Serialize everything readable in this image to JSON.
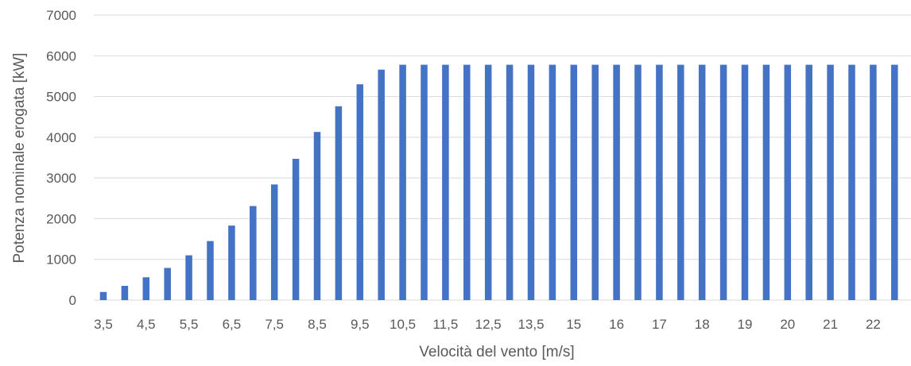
{
  "chart_data": {
    "type": "bar",
    "title": "",
    "xlabel": "Velocità del vento [m/s]",
    "ylabel": "Potenza nominale erogata [kW]",
    "ylim": [
      0,
      7000
    ],
    "yticks": [
      0,
      1000,
      2000,
      3000,
      4000,
      5000,
      6000,
      7000
    ],
    "grid": true,
    "bar_color": "#4472C4",
    "grid_color": "#D9D9D9",
    "categories": [
      "3,5",
      "4",
      "4,5",
      "5",
      "5,5",
      "6",
      "6,5",
      "7",
      "7,5",
      "8",
      "8,5",
      "9",
      "9,5",
      "10",
      "10,5",
      "11",
      "11,5",
      "12",
      "12,5",
      "13",
      "13,5",
      "14",
      "15",
      "15,5",
      "16",
      "16,5",
      "17",
      "17,5",
      "18",
      "18,5",
      "19",
      "19,5",
      "20",
      "20,5",
      "21",
      "21,5",
      "22",
      "22,5"
    ],
    "visible_tick_labels": [
      "3,5",
      "4,5",
      "5,5",
      "6,5",
      "7,5",
      "8,5",
      "9,5",
      "10,5",
      "11,5",
      "12,5",
      "13,5",
      "15",
      "16",
      "17",
      "18",
      "19",
      "20",
      "21",
      "22"
    ],
    "values": [
      200,
      350,
      560,
      790,
      1100,
      1450,
      1830,
      2310,
      2840,
      3470,
      4130,
      4760,
      5300,
      5660,
      5780,
      5780,
      5780,
      5780,
      5780,
      5780,
      5780,
      5780,
      5780,
      5780,
      5780,
      5780,
      5780,
      5780,
      5780,
      5780,
      5780,
      5780,
      5780,
      5780,
      5780,
      5780,
      5780,
      5780
    ]
  }
}
